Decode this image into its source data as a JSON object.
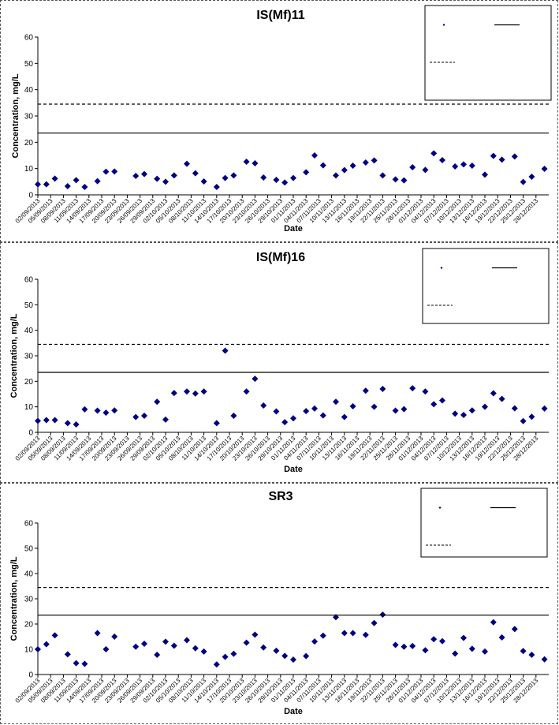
{
  "colors": {
    "marker": "#000080",
    "line": "#000000"
  },
  "chart_data": [
    {
      "type": "scatter",
      "title": "IS(Mf)11",
      "xlabel": "Date",
      "ylabel": "Concentration, mg/L",
      "ylim": [
        0,
        60
      ],
      "yticks": [
        0,
        10,
        20,
        30,
        40,
        50,
        60
      ],
      "legend_position": "top-right",
      "xtick_labels": [
        "02/09/2013",
        "05/09/2013",
        "08/09/2013",
        "11/09/2013",
        "14/09/2013",
        "17/09/2013",
        "20/09/2013",
        "23/09/2013",
        "26/09/2013",
        "29/09/2013",
        "02/10/2013",
        "05/10/2013",
        "08/10/2013",
        "11/10/2013",
        "14/10/2013",
        "17/10/2013",
        "20/10/2013",
        "23/10/2013",
        "26/10/2013",
        "29/10/2013",
        "01/11/2013",
        "04/11/2013",
        "07/11/2013",
        "10/11/2013",
        "13/11/2013",
        "16/11/2013",
        "19/11/2013",
        "22/11/2013",
        "25/11/2013",
        "28/11/2013",
        "01/12/2013",
        "04/12/2013",
        "07/12/2013",
        "10/12/2013",
        "13/12/2013",
        "16/12/2013",
        "19/12/2013",
        "22/12/2013",
        "25/12/2013",
        "28/12/2013"
      ],
      "series": [
        {
          "kind": "points",
          "x": [
            "2013-09-02",
            "2013-09-04",
            "2013-09-06",
            "2013-09-09",
            "2013-09-11",
            "2013-09-13",
            "2013-09-16",
            "2013-09-18",
            "2013-09-20",
            "2013-09-25",
            "2013-09-27",
            "2013-09-30",
            "2013-10-02",
            "2013-10-04",
            "2013-10-07",
            "2013-10-09",
            "2013-10-11",
            "2013-10-14",
            "2013-10-16",
            "2013-10-18",
            "2013-10-21",
            "2013-10-23",
            "2013-10-25",
            "2013-10-28",
            "2013-10-30",
            "2013-11-01",
            "2013-11-04",
            "2013-11-06",
            "2013-11-08",
            "2013-11-11",
            "2013-11-13",
            "2013-11-15",
            "2013-11-18",
            "2013-11-20",
            "2013-11-22",
            "2013-11-25",
            "2013-11-27",
            "2013-11-29",
            "2013-12-02",
            "2013-12-04",
            "2013-12-06",
            "2013-12-09",
            "2013-12-11",
            "2013-12-13",
            "2013-12-16",
            "2013-12-18",
            "2013-12-20",
            "2013-12-23",
            "2013-12-25",
            "2013-12-27",
            "2013-12-30"
          ],
          "y": [
            4,
            4,
            6.2,
            3.3,
            5.6,
            3,
            5.2,
            8.8,
            8.9,
            7.2,
            7.9,
            6.1,
            5,
            7.4,
            11.8,
            8.2,
            5.1,
            3,
            6.4,
            7.4,
            12.6,
            12,
            6.6,
            5.7,
            4.7,
            6.4,
            8.6,
            15,
            11.2,
            7.4,
            9.4,
            11.1,
            12.3,
            13.1,
            7.4,
            5.9,
            5.5,
            10.5,
            9.5,
            15.8,
            13.2,
            10.8,
            11.6,
            11.1,
            7.7,
            14.8,
            13.4,
            14.6,
            4.9,
            6.9,
            9.9
          ]
        },
        {
          "kind": "hline",
          "style": "solid",
          "value": 23.5
        },
        {
          "kind": "hline",
          "style": "dashed",
          "value": 34.5
        }
      ]
    },
    {
      "type": "scatter",
      "title": "IS(Mf)16",
      "xlabel": "Date",
      "ylabel": "Concentration, mg/L",
      "ylim": [
        0,
        60
      ],
      "yticks": [
        0,
        10,
        20,
        30,
        40,
        50,
        60
      ],
      "legend_position": "top-right",
      "xtick_labels": [
        "02/09/2013",
        "05/09/2013",
        "08/09/2013",
        "11/09/2013",
        "14/09/2013",
        "17/09/2013",
        "20/09/2013",
        "23/09/2013",
        "26/09/2013",
        "29/09/2013",
        "02/10/2013",
        "05/10/2013",
        "08/10/2013",
        "11/10/2013",
        "14/10/2013",
        "17/10/2013",
        "20/10/2013",
        "23/10/2013",
        "26/10/2013",
        "29/10/2013",
        "01/11/2013",
        "04/11/2013",
        "07/11/2013",
        "10/11/2013",
        "13/11/2013",
        "16/11/2013",
        "19/11/2013",
        "22/11/2013",
        "25/11/2013",
        "28/11/2013",
        "01/12/2013",
        "04/12/2013",
        "07/12/2013",
        "10/12/2013",
        "13/12/2013",
        "16/12/2013",
        "19/12/2013",
        "22/12/2013",
        "25/12/2013",
        "28/12/2013"
      ],
      "series": [
        {
          "kind": "points",
          "x": [
            "2013-09-02",
            "2013-09-04",
            "2013-09-06",
            "2013-09-09",
            "2013-09-11",
            "2013-09-13",
            "2013-09-16",
            "2013-09-18",
            "2013-09-20",
            "2013-09-25",
            "2013-09-27",
            "2013-09-30",
            "2013-10-02",
            "2013-10-04",
            "2013-10-07",
            "2013-10-09",
            "2013-10-11",
            "2013-10-14",
            "2013-10-16",
            "2013-10-18",
            "2013-10-21",
            "2013-10-23",
            "2013-10-25",
            "2013-10-28",
            "2013-10-30",
            "2013-11-01",
            "2013-11-04",
            "2013-11-06",
            "2013-11-08",
            "2013-11-11",
            "2013-11-13",
            "2013-11-15",
            "2013-11-18",
            "2013-11-20",
            "2013-11-22",
            "2013-11-25",
            "2013-11-27",
            "2013-11-29",
            "2013-12-02",
            "2013-12-04",
            "2013-12-06",
            "2013-12-09",
            "2013-12-11",
            "2013-12-13",
            "2013-12-16",
            "2013-12-18",
            "2013-12-20",
            "2013-12-23",
            "2013-12-25",
            "2013-12-27",
            "2013-12-30"
          ],
          "y": [
            4.5,
            4.8,
            4.8,
            3.6,
            3.1,
            9,
            8.5,
            7.7,
            8.6,
            6,
            6.5,
            12,
            5,
            15.4,
            16,
            15.2,
            16,
            3.6,
            32,
            6.5,
            16,
            21,
            10.5,
            8.2,
            4,
            5.5,
            8.3,
            9.3,
            6.6,
            12,
            6,
            10.2,
            16.3,
            10,
            17,
            8.5,
            9.1,
            17.3,
            16,
            11,
            12.5,
            7.3,
            6.8,
            8.6,
            10,
            15.3,
            13.1,
            9.4,
            4.4,
            6.1,
            9.3
          ]
        },
        {
          "kind": "hline",
          "style": "solid",
          "value": 23.5
        },
        {
          "kind": "hline",
          "style": "dashed",
          "value": 34.5
        }
      ]
    },
    {
      "type": "scatter",
      "title": "SR3",
      "xlabel": "Date",
      "ylabel": "Concentration, mg/L",
      "ylim": [
        0,
        60
      ],
      "yticks": [
        0,
        10,
        20,
        30,
        40,
        50,
        60
      ],
      "legend_position": "top-right",
      "xtick_labels": [
        "02/09/2013",
        "05/09/2013",
        "08/09/2013",
        "11/09/2013",
        "14/09/2013",
        "17/09/2013",
        "20/09/2013",
        "23/09/2013",
        "26/09/2013",
        "29/09/2013",
        "02/10/2013",
        "05/10/2013",
        "08/10/2013",
        "11/10/2013",
        "14/10/2013",
        "17/10/2013",
        "20/10/2013",
        "23/10/2013",
        "26/10/2013",
        "29/10/2013",
        "01/11/2013",
        "04/11/2013",
        "07/11/2013",
        "10/11/2013",
        "13/11/2013",
        "16/11/2013",
        "19/11/2013",
        "22/11/2013",
        "25/11/2013",
        "28/11/2013",
        "01/12/2013",
        "04/12/2013",
        "07/12/2013",
        "10/12/2013",
        "13/12/2013",
        "16/12/2013",
        "19/12/2013",
        "22/12/2013",
        "25/12/2013",
        "28/12/2013"
      ],
      "series": [
        {
          "kind": "points",
          "x": [
            "2013-09-02",
            "2013-09-04",
            "2013-09-06",
            "2013-09-09",
            "2013-09-11",
            "2013-09-13",
            "2013-09-16",
            "2013-09-18",
            "2013-09-20",
            "2013-09-25",
            "2013-09-27",
            "2013-09-30",
            "2013-10-02",
            "2013-10-04",
            "2013-10-07",
            "2013-10-09",
            "2013-10-11",
            "2013-10-14",
            "2013-10-16",
            "2013-10-18",
            "2013-10-21",
            "2013-10-23",
            "2013-10-25",
            "2013-10-28",
            "2013-10-30",
            "2013-11-01",
            "2013-11-04",
            "2013-11-06",
            "2013-11-08",
            "2013-11-11",
            "2013-11-13",
            "2013-11-15",
            "2013-11-18",
            "2013-11-20",
            "2013-11-22",
            "2013-11-25",
            "2013-11-27",
            "2013-11-29",
            "2013-12-02",
            "2013-12-04",
            "2013-12-06",
            "2013-12-09",
            "2013-12-11",
            "2013-12-13",
            "2013-12-16",
            "2013-12-18",
            "2013-12-20",
            "2013-12-23",
            "2013-12-25",
            "2013-12-27",
            "2013-12-30"
          ],
          "y": [
            10,
            12,
            15.5,
            8,
            4.5,
            4.2,
            16.4,
            10,
            15,
            11,
            12.2,
            7.8,
            13,
            11.4,
            13.6,
            10.4,
            9.1,
            4,
            7,
            8.2,
            12.6,
            15.8,
            10.7,
            9.4,
            7.4,
            5.9,
            7.3,
            13.1,
            15.4,
            22.7,
            16.4,
            16.4,
            15.7,
            20.4,
            23.7,
            11.7,
            11,
            11.3,
            9.6,
            14,
            13.2,
            8.3,
            14.5,
            10.2,
            9.1,
            20.7,
            14.7,
            18,
            9.3,
            7.8,
            6
          ]
        },
        {
          "kind": "hline",
          "style": "solid",
          "value": 23.5
        },
        {
          "kind": "hline",
          "style": "dashed",
          "value": 34.5
        }
      ]
    }
  ]
}
